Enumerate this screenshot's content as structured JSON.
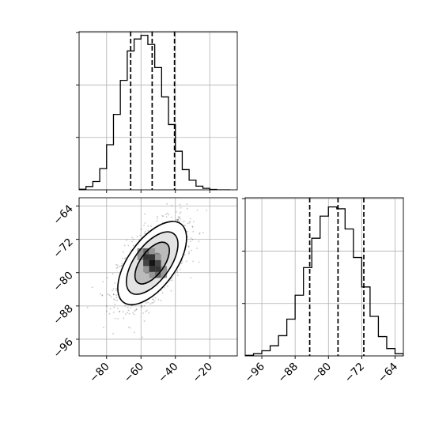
{
  "chart_data": [
    {
      "type": "histogram",
      "panel": "x-marginal",
      "grid": true,
      "xlim": [
        -96,
        -4
      ],
      "ylim": [
        0,
        860
      ],
      "bin_edges": [
        -96,
        -92,
        -88,
        -84,
        -80,
        -76,
        -72,
        -68,
        -64,
        -60,
        -56,
        -52,
        -48,
        -44,
        -40,
        -36,
        -32,
        -28,
        -24,
        -20,
        -16,
        -12,
        -8
      ],
      "counts": [
        3,
        18,
        45,
        115,
        245,
        410,
        595,
        755,
        820,
        840,
        790,
        665,
        505,
        355,
        210,
        110,
        52,
        20,
        8,
        2,
        0,
        0
      ],
      "quantiles": [
        -66,
        -53.5,
        -40.5
      ],
      "yticks": [
        285,
        570,
        855
      ]
    },
    {
      "type": "histogram",
      "panel": "y-marginal",
      "grid": true,
      "xlim": [
        -100,
        -62
      ],
      "ylim": [
        0,
        860
      ],
      "bin_edges": [
        -100,
        -98,
        -96,
        -94,
        -92,
        -90,
        -88,
        -86,
        -84,
        -82,
        -80,
        -78,
        -76,
        -74,
        -72,
        -70,
        -68,
        -66,
        -64,
        -62
      ],
      "counts": [
        3,
        12,
        28,
        55,
        110,
        200,
        330,
        480,
        640,
        760,
        810,
        800,
        690,
        535,
        375,
        215,
        105,
        40,
        12
      ],
      "quantiles": [
        -84.5,
        -77.7,
        -71.5
      ],
      "xticks": [
        -96,
        -88,
        -80,
        -72,
        -64
      ],
      "yticks": [
        285,
        570,
        855
      ]
    },
    {
      "type": "2d-histogram-contour",
      "panel": "joint",
      "grid": true,
      "xlim": [
        -96,
        -4
      ],
      "ylim": [
        -100,
        -62
      ],
      "xticks": [
        -80,
        -60,
        -40,
        -20
      ],
      "yticks": [
        -64,
        -72,
        -80,
        -88,
        -96
      ],
      "center": [
        -53.5,
        -77.7
      ],
      "contour_levels_sigma": [
        0.5,
        1.0,
        1.5,
        2.0
      ]
    }
  ]
}
